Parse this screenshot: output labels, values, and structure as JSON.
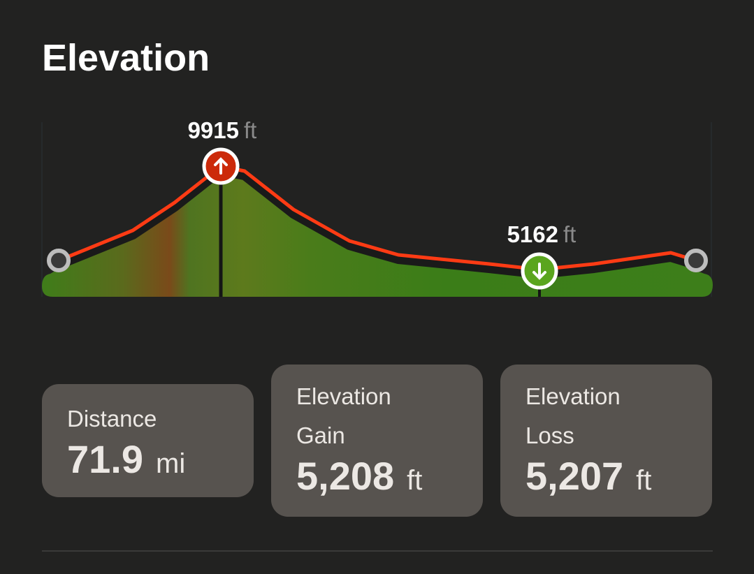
{
  "title": "Elevation",
  "profile": {
    "max": {
      "value": "9915",
      "unit": "ft"
    },
    "min": {
      "value": "5162",
      "unit": "ft"
    }
  },
  "stats": [
    {
      "label": "Distance",
      "value": "71.9",
      "unit": "mi"
    },
    {
      "label": "Elevation Gain",
      "value": "5,208",
      "unit": "ft"
    },
    {
      "label": "Elevation Loss",
      "value": "5,207",
      "unit": "ft"
    }
  ]
}
